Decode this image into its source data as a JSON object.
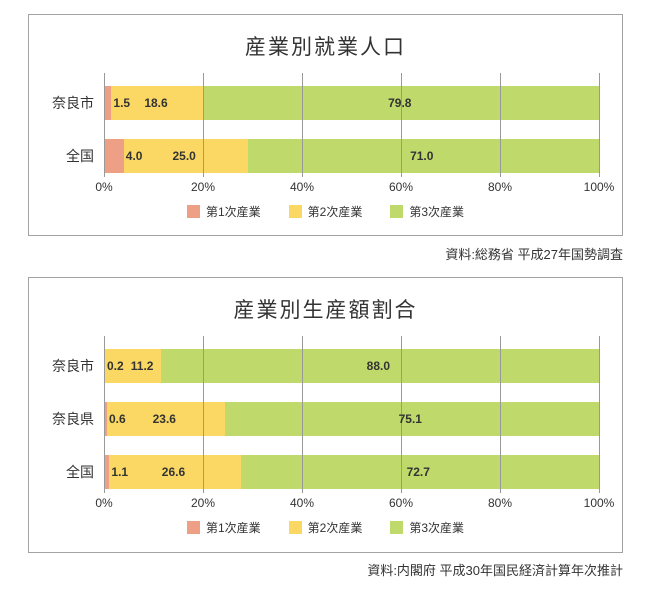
{
  "colors": {
    "box_border": "#a3a3a3",
    "grid_line": "#999999",
    "text": "#333333",
    "primary_industry": "#EDA085",
    "secondary_industry": "#FAD863",
    "tertiary_industry": "#BFD96B"
  },
  "chart_data": [
    {
      "type": "bar",
      "variant": "horizontal-stacked-100pct",
      "title": "産業別就業人口",
      "source": "資料:総務省 平成27年国勢調査",
      "categories": [
        "奈良市",
        "全国"
      ],
      "series": [
        {
          "name": "第1次産業",
          "color": "#EDA085",
          "values": [
            1.5,
            4.0
          ]
        },
        {
          "name": "第2次産業",
          "color": "#FAD863",
          "values": [
            18.6,
            25.0
          ]
        },
        {
          "name": "第3次産業",
          "color": "#BFD96B",
          "values": [
            79.8,
            71.0
          ]
        }
      ],
      "x_ticks": [
        "0%",
        "20%",
        "40%",
        "60%",
        "80%",
        "100%"
      ],
      "xlim": [
        0,
        100
      ],
      "unit": "%",
      "grid": true,
      "legend_position": "bottom"
    },
    {
      "type": "bar",
      "variant": "horizontal-stacked-100pct",
      "title": "産業別生産額割合",
      "source": "資料:内閣府 平成30年国民経済計算年次推計",
      "categories": [
        "奈良市",
        "奈良県",
        "全国"
      ],
      "series": [
        {
          "name": "第1次産業",
          "color": "#EDA085",
          "values": [
            0.2,
            0.6,
            1.1
          ]
        },
        {
          "name": "第2次産業",
          "color": "#FAD863",
          "values": [
            11.2,
            23.6,
            26.6
          ]
        },
        {
          "name": "第3次産業",
          "color": "#BFD96B",
          "values": [
            88.0,
            75.1,
            72.7
          ]
        }
      ],
      "x_ticks": [
        "0%",
        "20%",
        "40%",
        "60%",
        "80%",
        "100%"
      ],
      "xlim": [
        0,
        100
      ],
      "unit": "%",
      "grid": true,
      "legend_position": "bottom"
    }
  ]
}
